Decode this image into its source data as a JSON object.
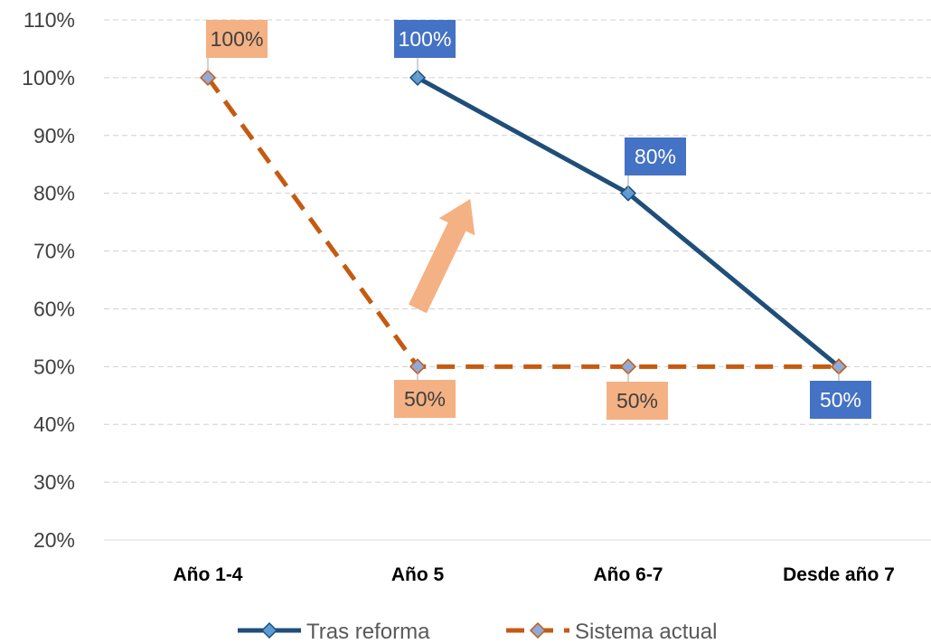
{
  "chart_data": {
    "type": "line",
    "categories": [
      "Año 1-4",
      "Año 5",
      "Año 6-7",
      "Desde año 7"
    ],
    "series": [
      {
        "name": "Tras reforma",
        "values": [
          null,
          100,
          80,
          50
        ],
        "data_labels": [
          "",
          "100%",
          "80%",
          "50%"
        ],
        "color": "#1f4e79",
        "style": "solid",
        "label_bg": "#4472c4",
        "label_color": "#ffffff"
      },
      {
        "name": "Sistema actual",
        "values": [
          100,
          50,
          50,
          50
        ],
        "data_labels": [
          "100%",
          "50%",
          "50%",
          ""
        ],
        "color": "#c55a11",
        "style": "dashed",
        "label_bg": "#f4b183",
        "label_color": "#404040"
      }
    ],
    "ylim": [
      20,
      110
    ],
    "yticks": [
      "110%",
      "100%",
      "90%",
      "80%",
      "70%",
      "60%",
      "50%",
      "40%",
      "30%",
      "20%"
    ],
    "ytick_values": [
      110,
      100,
      90,
      80,
      70,
      60,
      50,
      40,
      30,
      20
    ],
    "grid": true,
    "legend": "bottom",
    "annotations": [
      {
        "type": "arrow",
        "direction": "up-right",
        "from": [
          1,
          60
        ],
        "to": [
          1.25,
          79
        ],
        "color": "#f4b183"
      }
    ],
    "title": "",
    "xlabel": "",
    "ylabel": ""
  }
}
